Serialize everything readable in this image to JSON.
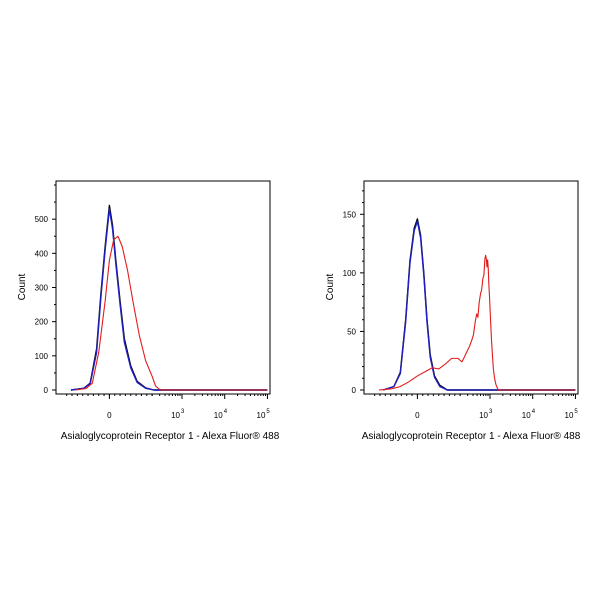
{
  "colors": {
    "background": "#ffffff",
    "axis": "#000000",
    "blue": "#1f1fbf",
    "black": "#000000",
    "red": "#e01b1b"
  },
  "chart_data": [
    {
      "type": "line",
      "xlabel": "Asialoglycoprotein Receptor 1 - Alexa Fluor® 488",
      "ylabel": "Count",
      "x_scale": "biexponential",
      "x_ticks": [
        {
          "label": "0",
          "value": 0
        },
        {
          "label": "10",
          "sup": "3",
          "value": 1000
        },
        {
          "label": "10",
          "sup": "4",
          "value": 10000
        },
        {
          "label": "10",
          "sup": "5",
          "value": 100000
        }
      ],
      "y_ticks": [
        0,
        100,
        200,
        300,
        400,
        500
      ],
      "ylim": [
        0,
        600
      ],
      "series": [
        {
          "color": "#000000",
          "points": [
            [
              -180,
              0
            ],
            [
              -120,
              5
            ],
            [
              -90,
              20
            ],
            [
              -60,
              120
            ],
            [
              -40,
              280
            ],
            [
              -20,
              420
            ],
            [
              0,
              540
            ],
            [
              15,
              480
            ],
            [
              30,
              380
            ],
            [
              50,
              260
            ],
            [
              70,
              150
            ],
            [
              100,
              70
            ],
            [
              130,
              25
            ],
            [
              170,
              6
            ],
            [
              220,
              0
            ],
            [
              100000,
              0
            ]
          ]
        },
        {
          "color": "#1f1fbf",
          "points": [
            [
              -180,
              0
            ],
            [
              -120,
              5
            ],
            [
              -90,
              18
            ],
            [
              -60,
              110
            ],
            [
              -40,
              270
            ],
            [
              -20,
              410
            ],
            [
              0,
              530
            ],
            [
              15,
              470
            ],
            [
              30,
              370
            ],
            [
              50,
              250
            ],
            [
              70,
              140
            ],
            [
              100,
              65
            ],
            [
              130,
              22
            ],
            [
              170,
              5
            ],
            [
              220,
              0
            ],
            [
              100000,
              0
            ]
          ]
        },
        {
          "color": "#e01b1b",
          "points": [
            [
              -160,
              0
            ],
            [
              -110,
              4
            ],
            [
              -80,
              20
            ],
            [
              -50,
              110
            ],
            [
              -20,
              260
            ],
            [
              0,
              380
            ],
            [
              20,
              440
            ],
            [
              40,
              450
            ],
            [
              60,
              420
            ],
            [
              85,
              350
            ],
            [
              110,
              260
            ],
            [
              140,
              160
            ],
            [
              170,
              85
            ],
            [
              200,
              40
            ],
            [
              240,
              12
            ],
            [
              290,
              3
            ],
            [
              340,
              0
            ],
            [
              100000,
              0
            ]
          ]
        }
      ]
    },
    {
      "type": "line",
      "xlabel": "Asialoglycoprotein Receptor 1 - Alexa Fluor® 488",
      "ylabel": "Count",
      "x_scale": "biexponential",
      "x_ticks": [
        {
          "label": "0",
          "value": 0
        },
        {
          "label": "10",
          "sup": "3",
          "value": 1000
        },
        {
          "label": "10",
          "sup": "4",
          "value": 10000
        },
        {
          "label": "10",
          "sup": "5",
          "value": 100000
        }
      ],
      "y_ticks": [
        0,
        50,
        100,
        150
      ],
      "ylim": [
        0,
        175
      ],
      "series": [
        {
          "color": "#000000",
          "points": [
            [
              -160,
              0
            ],
            [
              -110,
              3
            ],
            [
              -80,
              15
            ],
            [
              -55,
              60
            ],
            [
              -35,
              110
            ],
            [
              -15,
              138
            ],
            [
              0,
              146
            ],
            [
              15,
              132
            ],
            [
              30,
              100
            ],
            [
              45,
              60
            ],
            [
              60,
              30
            ],
            [
              80,
              12
            ],
            [
              105,
              4
            ],
            [
              140,
              0
            ],
            [
              100000,
              0
            ]
          ]
        },
        {
          "color": "#1f1fbf",
          "points": [
            [
              -160,
              0
            ],
            [
              -110,
              3
            ],
            [
              -80,
              14
            ],
            [
              -55,
              58
            ],
            [
              -35,
              108
            ],
            [
              -15,
              136
            ],
            [
              0,
              144
            ],
            [
              15,
              130
            ],
            [
              30,
              98
            ],
            [
              45,
              58
            ],
            [
              60,
              28
            ],
            [
              80,
              11
            ],
            [
              105,
              3
            ],
            [
              140,
              0
            ],
            [
              100000,
              0
            ]
          ]
        },
        {
          "color": "#e01b1b",
          "points": [
            [
              -180,
              0
            ],
            [
              -120,
              1
            ],
            [
              -80,
              3
            ],
            [
              -40,
              7
            ],
            [
              0,
              12
            ],
            [
              40,
              16
            ],
            [
              70,
              19
            ],
            [
              100,
              18
            ],
            [
              130,
              22
            ],
            [
              160,
              27
            ],
            [
              190,
              27
            ],
            [
              220,
              24
            ],
            [
              250,
              28
            ],
            [
              290,
              33
            ],
            [
              330,
              37
            ],
            [
              370,
              42
            ],
            [
              410,
              47
            ],
            [
              450,
              58
            ],
            [
              490,
              65
            ],
            [
              520,
              62
            ],
            [
              560,
              75
            ],
            [
              600,
              82
            ],
            [
              640,
              86
            ],
            [
              680,
              95
            ],
            [
              720,
              98
            ],
            [
              760,
              112
            ],
            [
              790,
              115
            ],
            [
              820,
              112
            ],
            [
              850,
              105
            ],
            [
              880,
              111
            ],
            [
              910,
              104
            ],
            [
              940,
              90
            ],
            [
              980,
              78
            ],
            [
              1030,
              60
            ],
            [
              1080,
              44
            ],
            [
              1140,
              30
            ],
            [
              1200,
              18
            ],
            [
              1280,
              10
            ],
            [
              1370,
              5
            ],
            [
              1470,
              2
            ],
            [
              1580,
              0
            ],
            [
              100000,
              0
            ]
          ]
        }
      ]
    }
  ]
}
